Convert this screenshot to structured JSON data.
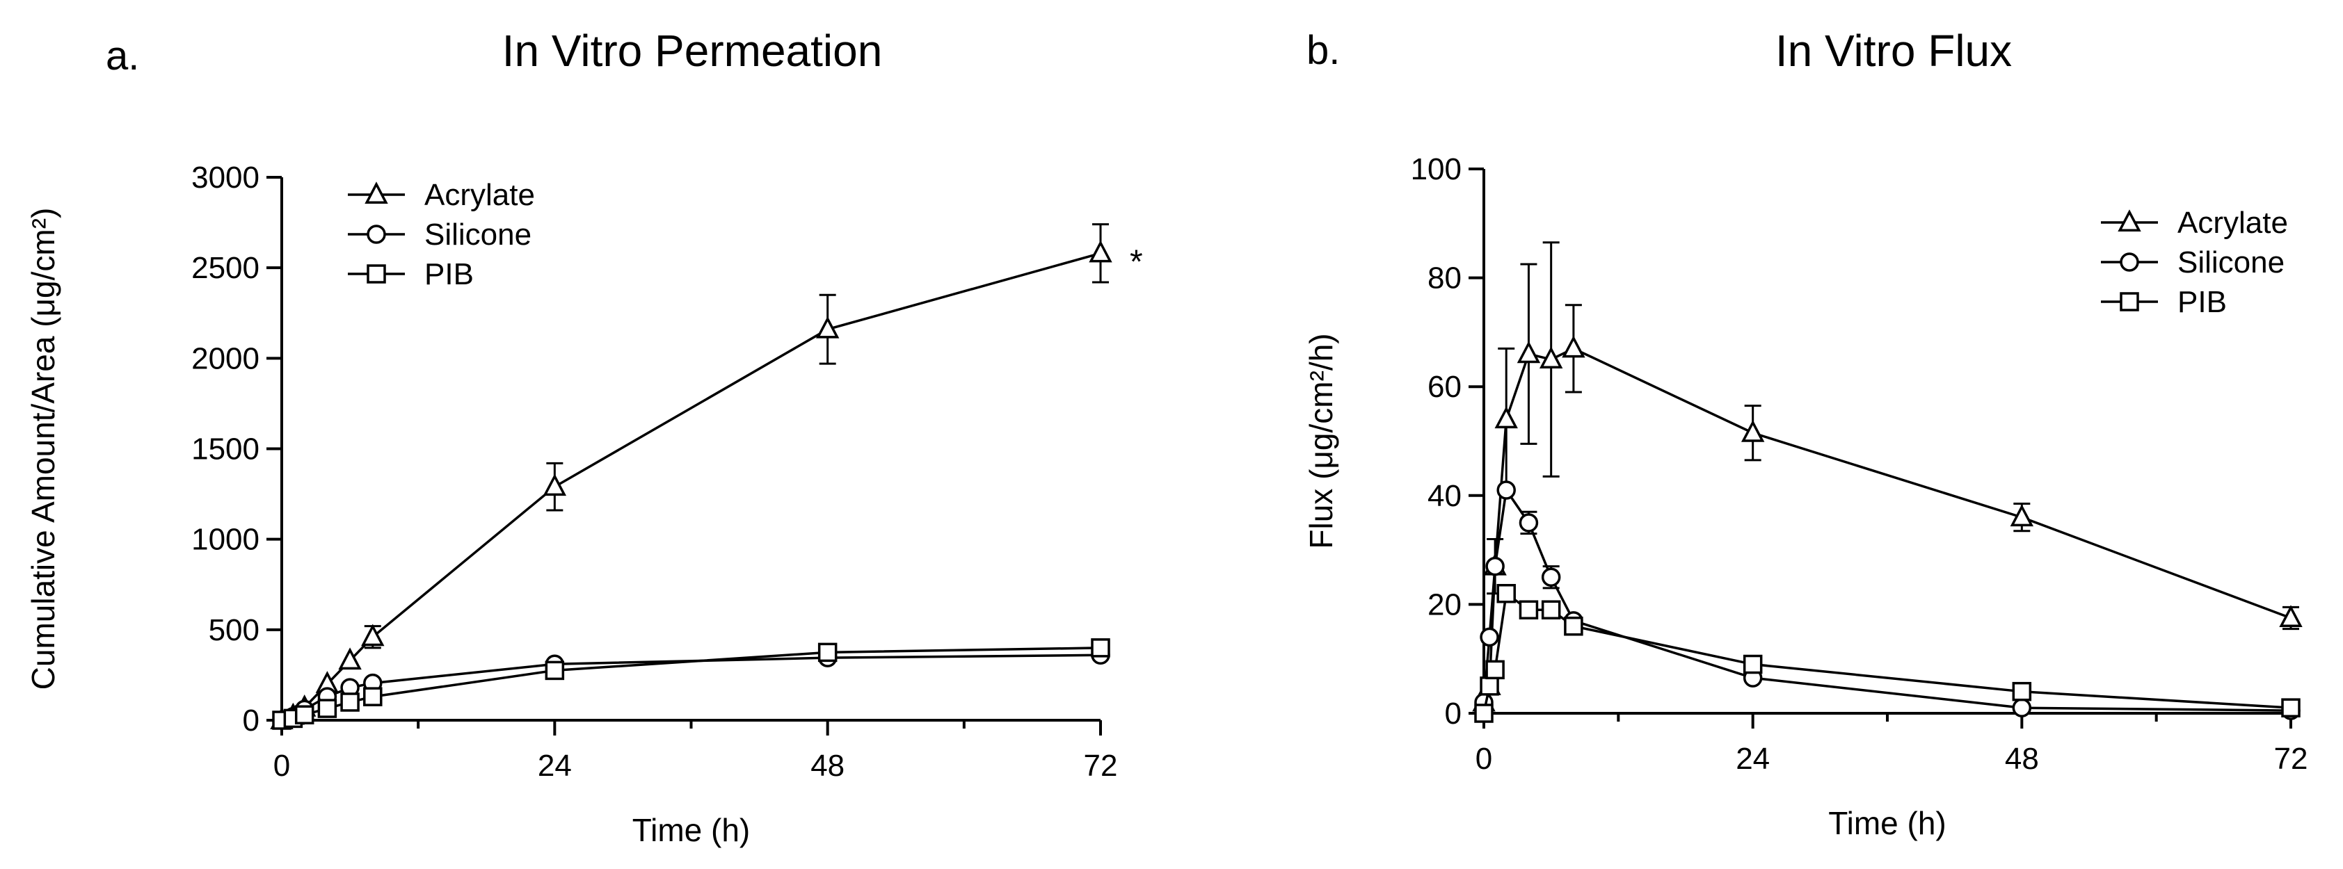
{
  "chart_data": [
    {
      "type": "line",
      "panel_label": "a.",
      "title": "In Vitro Permeation",
      "xlabel": "Time (h)",
      "ylabel": "Cumulative Amount/Area (μg/cm²)",
      "xlim": [
        0,
        72
      ],
      "ylim": [
        0,
        3000
      ],
      "xticks": [
        0,
        24,
        48,
        72
      ],
      "xminorticks": [
        12,
        36,
        60
      ],
      "yticks": [
        0,
        500,
        1000,
        1500,
        2000,
        2500,
        3000
      ],
      "legend_position": "top-left",
      "annotation": {
        "text": "*",
        "series": "Acrylate",
        "x": 72
      },
      "series": [
        {
          "name": "Acrylate",
          "marker": "triangle",
          "x": [
            0,
            1,
            2,
            4,
            6,
            8,
            24,
            48,
            72
          ],
          "y": [
            0,
            25,
            70,
            200,
            330,
            460,
            1290,
            2160,
            2580
          ],
          "err": [
            0,
            0,
            0,
            0,
            0,
            60,
            130,
            190,
            160
          ]
        },
        {
          "name": "Silicone",
          "marker": "circle",
          "x": [
            0,
            1,
            2,
            4,
            6,
            8,
            24,
            48,
            72
          ],
          "y": [
            0,
            20,
            60,
            130,
            180,
            205,
            310,
            345,
            360
          ],
          "err": [
            0,
            0,
            0,
            0,
            0,
            0,
            0,
            0,
            0
          ]
        },
        {
          "name": "PIB",
          "marker": "square",
          "x": [
            0,
            1,
            2,
            4,
            6,
            8,
            24,
            48,
            72
          ],
          "y": [
            0,
            10,
            30,
            65,
            100,
            130,
            275,
            375,
            400
          ],
          "err": [
            0,
            0,
            0,
            0,
            0,
            0,
            0,
            0,
            0
          ]
        }
      ]
    },
    {
      "type": "line",
      "panel_label": "b.",
      "title": "In Vitro Flux",
      "xlabel": "Time (h)",
      "ylabel": "Flux (μg/cm²/h)",
      "xlim": [
        0,
        72
      ],
      "ylim": [
        0,
        100
      ],
      "xticks": [
        0,
        24,
        48,
        72
      ],
      "xminorticks": [
        12,
        36,
        60
      ],
      "yticks": [
        0,
        20,
        40,
        60,
        80,
        100
      ],
      "legend_position": "top-right",
      "series": [
        {
          "name": "Acrylate",
          "marker": "triangle",
          "x": [
            0,
            0.5,
            1,
            2,
            4,
            6,
            8,
            24,
            48,
            72
          ],
          "y": [
            2,
            5,
            27,
            54,
            66,
            65,
            67,
            51.5,
            36,
            17.5
          ],
          "err": [
            0,
            0,
            5,
            13,
            16.5,
            21.5,
            8,
            5,
            2.5,
            2
          ]
        },
        {
          "name": "Silicone",
          "marker": "circle",
          "x": [
            0,
            0.5,
            1,
            2,
            4,
            6,
            8,
            24,
            48,
            72
          ],
          "y": [
            2,
            14,
            27,
            41,
            35,
            25,
            17,
            6.5,
            1,
            0.5
          ],
          "err": [
            0,
            0,
            0,
            0,
            2,
            2,
            0,
            0,
            0,
            0
          ]
        },
        {
          "name": "PIB",
          "marker": "square",
          "x": [
            0,
            0.5,
            1,
            2,
            4,
            6,
            8,
            24,
            48,
            72
          ],
          "y": [
            0,
            5,
            8,
            22,
            19,
            19,
            16,
            9,
            4,
            1
          ],
          "err": [
            0,
            0,
            0,
            0,
            0,
            0,
            0,
            0,
            0,
            0
          ]
        }
      ]
    }
  ]
}
